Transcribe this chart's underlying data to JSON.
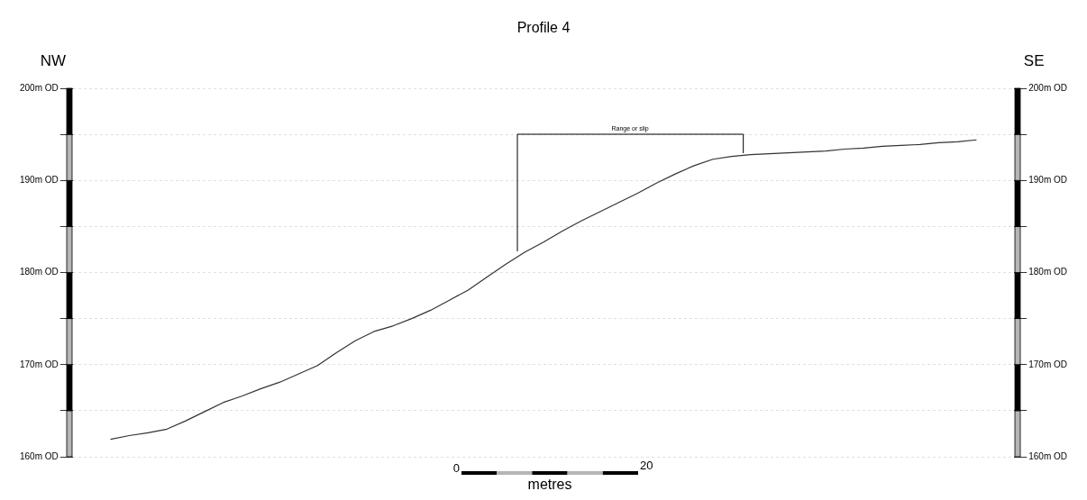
{
  "chart_data": {
    "type": "line",
    "title": "Profile 4",
    "categories": [
      null,
      null,
      null,
      null,
      null,
      null,
      null,
      null,
      null,
      null,
      null,
      null,
      null,
      null,
      null,
      null,
      null,
      null,
      null,
      null,
      null,
      null,
      null,
      null,
      null,
      null,
      null,
      null,
      null,
      null,
      null,
      null,
      null,
      null,
      null,
      null,
      null,
      null,
      null,
      null,
      null,
      null,
      null,
      null,
      null,
      null,
      null,
      null,
      null,
      null,
      null
    ],
    "series": [
      {
        "color": "#333333",
        "values": [
          null,
          null,
          161.9,
          162.3,
          162.6,
          163.0,
          163.9,
          164.9,
          165.9,
          166.6,
          167.4,
          168.1,
          169.0,
          169.9,
          171.3,
          172.6,
          173.6,
          174.2,
          175.0,
          175.9,
          177.0,
          178.1,
          179.5,
          180.9,
          182.2,
          183.3,
          184.5,
          185.6,
          186.6,
          187.6,
          188.6,
          189.7,
          190.7,
          191.6,
          192.3,
          192.6,
          192.8,
          192.9,
          193.0,
          193.1,
          193.2,
          193.4,
          193.5,
          193.7,
          193.8,
          193.9,
          194.1,
          194.2,
          194.4,
          null,
          null
        ]
      }
    ],
    "ylim": [
      160,
      200
    ],
    "yticks": [
      {
        "value": 160,
        "label": "160m OD"
      },
      {
        "value": 165,
        "label": null
      },
      {
        "value": 170,
        "label": "170m OD"
      },
      {
        "value": 175,
        "label": null
      },
      {
        "value": 180,
        "label": "180m OD"
      },
      {
        "value": 185,
        "label": null
      },
      {
        "value": 190,
        "label": "190m OD"
      },
      {
        "value": 195,
        "label": null
      },
      {
        "value": 200,
        "label": "200m OD"
      }
    ],
    "y2lim": [
      160,
      200
    ],
    "y2ticks": [
      {
        "value": 160,
        "label": "160m OD"
      },
      {
        "value": 165,
        "label": null
      },
      {
        "value": 170,
        "label": "170m OD"
      },
      {
        "value": 175,
        "label": null
      },
      {
        "value": 180,
        "label": "180m OD"
      },
      {
        "value": 185,
        "label": null
      },
      {
        "value": 190,
        "label": "190m OD"
      },
      {
        "value": 195,
        "label": null
      },
      {
        "value": 200,
        "label": "200m OD"
      }
    ],
    "tick_labels": "y",
    "grid": "y",
    "line_style": "solid",
    "marker": "none",
    "annotations": [
      "NW",
      "SE",
      "0",
      "20",
      "metres",
      "Range or slip"
    ]
  }
}
